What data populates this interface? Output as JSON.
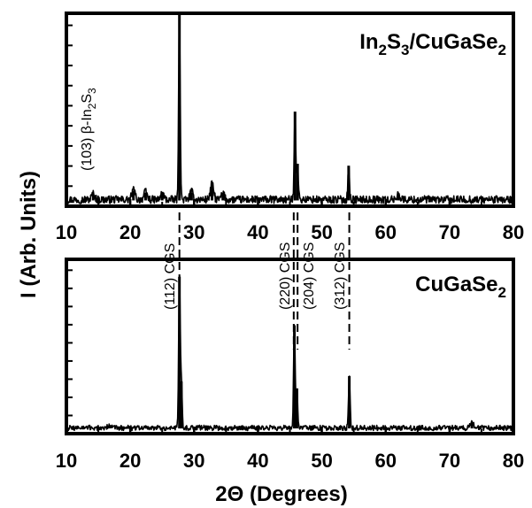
{
  "chart_data": [
    {
      "type": "line",
      "title": "In<sub>2</sub>S<sub>3</sub>/CuGaSe<sub>2</sub>",
      "title_parts": [
        {
          "t": "In",
          "sub": false
        },
        {
          "t": "2",
          "sub": true
        },
        {
          "t": "S",
          "sub": false
        },
        {
          "t": "3",
          "sub": true
        },
        {
          "t": "/CuGaSe",
          "sub": false
        },
        {
          "t": "2",
          "sub": true
        }
      ],
      "xlim": [
        10,
        80
      ],
      "ylim": [
        0,
        1
      ],
      "xticks": [
        "10",
        "20",
        "30",
        "40",
        "50",
        "60",
        "70",
        "80"
      ],
      "xlabel": "",
      "ylabel": "",
      "yticks_labeled": false,
      "grid": false,
      "baseline": 0.03,
      "noise_level": 0.02,
      "peaks": [
        {
          "x": 14.2,
          "y": 0.06
        },
        {
          "x": 20.5,
          "y": 0.08
        },
        {
          "x": 22.4,
          "y": 0.07
        },
        {
          "x": 25.0,
          "y": 0.06
        },
        {
          "x": 27.7,
          "y": 1.0
        },
        {
          "x": 29.6,
          "y": 0.07
        },
        {
          "x": 32.8,
          "y": 0.11
        },
        {
          "x": 34.5,
          "y": 0.06
        },
        {
          "x": 45.8,
          "y": 0.49
        },
        {
          "x": 46.2,
          "y": 0.22
        },
        {
          "x": 54.2,
          "y": 0.21
        },
        {
          "x": 62.0,
          "y": 0.06
        }
      ],
      "annotations": [
        {
          "x": 13.9,
          "label_parts": [
            {
              "t": "(103) ",
              "sub": false
            },
            {
              "t": "β",
              "sub": false
            },
            {
              "t": "-In",
              "sub": false
            },
            {
              "t": "2",
              "sub": true
            },
            {
              "t": "S",
              "sub": false
            },
            {
              "t": "3",
              "sub": true
            }
          ]
        }
      ]
    },
    {
      "type": "line",
      "title_parts": [
        {
          "t": "CuGaSe",
          "sub": false
        },
        {
          "t": "2",
          "sub": true
        }
      ],
      "xlim": [
        10,
        80
      ],
      "ylim": [
        0,
        1
      ],
      "xticks": [
        "10",
        "20",
        "30",
        "40",
        "50",
        "60",
        "70",
        "80"
      ],
      "xlabel": "2Θ (Degrees)",
      "ylabel": "I (Arb. Units)",
      "yticks_labeled": false,
      "grid": false,
      "baseline": 0.03,
      "noise_level": 0.015,
      "peaks": [
        {
          "x": 16.8,
          "y": 0.05
        },
        {
          "x": 27.7,
          "y": 0.9
        },
        {
          "x": 28.0,
          "y": 0.3
        },
        {
          "x": 45.7,
          "y": 0.62
        },
        {
          "x": 46.1,
          "y": 0.26
        },
        {
          "x": 54.3,
          "y": 0.33
        },
        {
          "x": 73.5,
          "y": 0.06
        }
      ],
      "annotations": [
        {
          "x": 26.9,
          "label": "(112) CGS"
        },
        {
          "x": 44.9,
          "label": "(220) CGS"
        },
        {
          "x": 48.7,
          "label": "(204) CGS"
        },
        {
          "x": 53.5,
          "label": "(312) CGS"
        }
      ]
    }
  ],
  "dashed_guides_x": [
    27.7,
    45.6,
    46.2,
    54.3
  ]
}
